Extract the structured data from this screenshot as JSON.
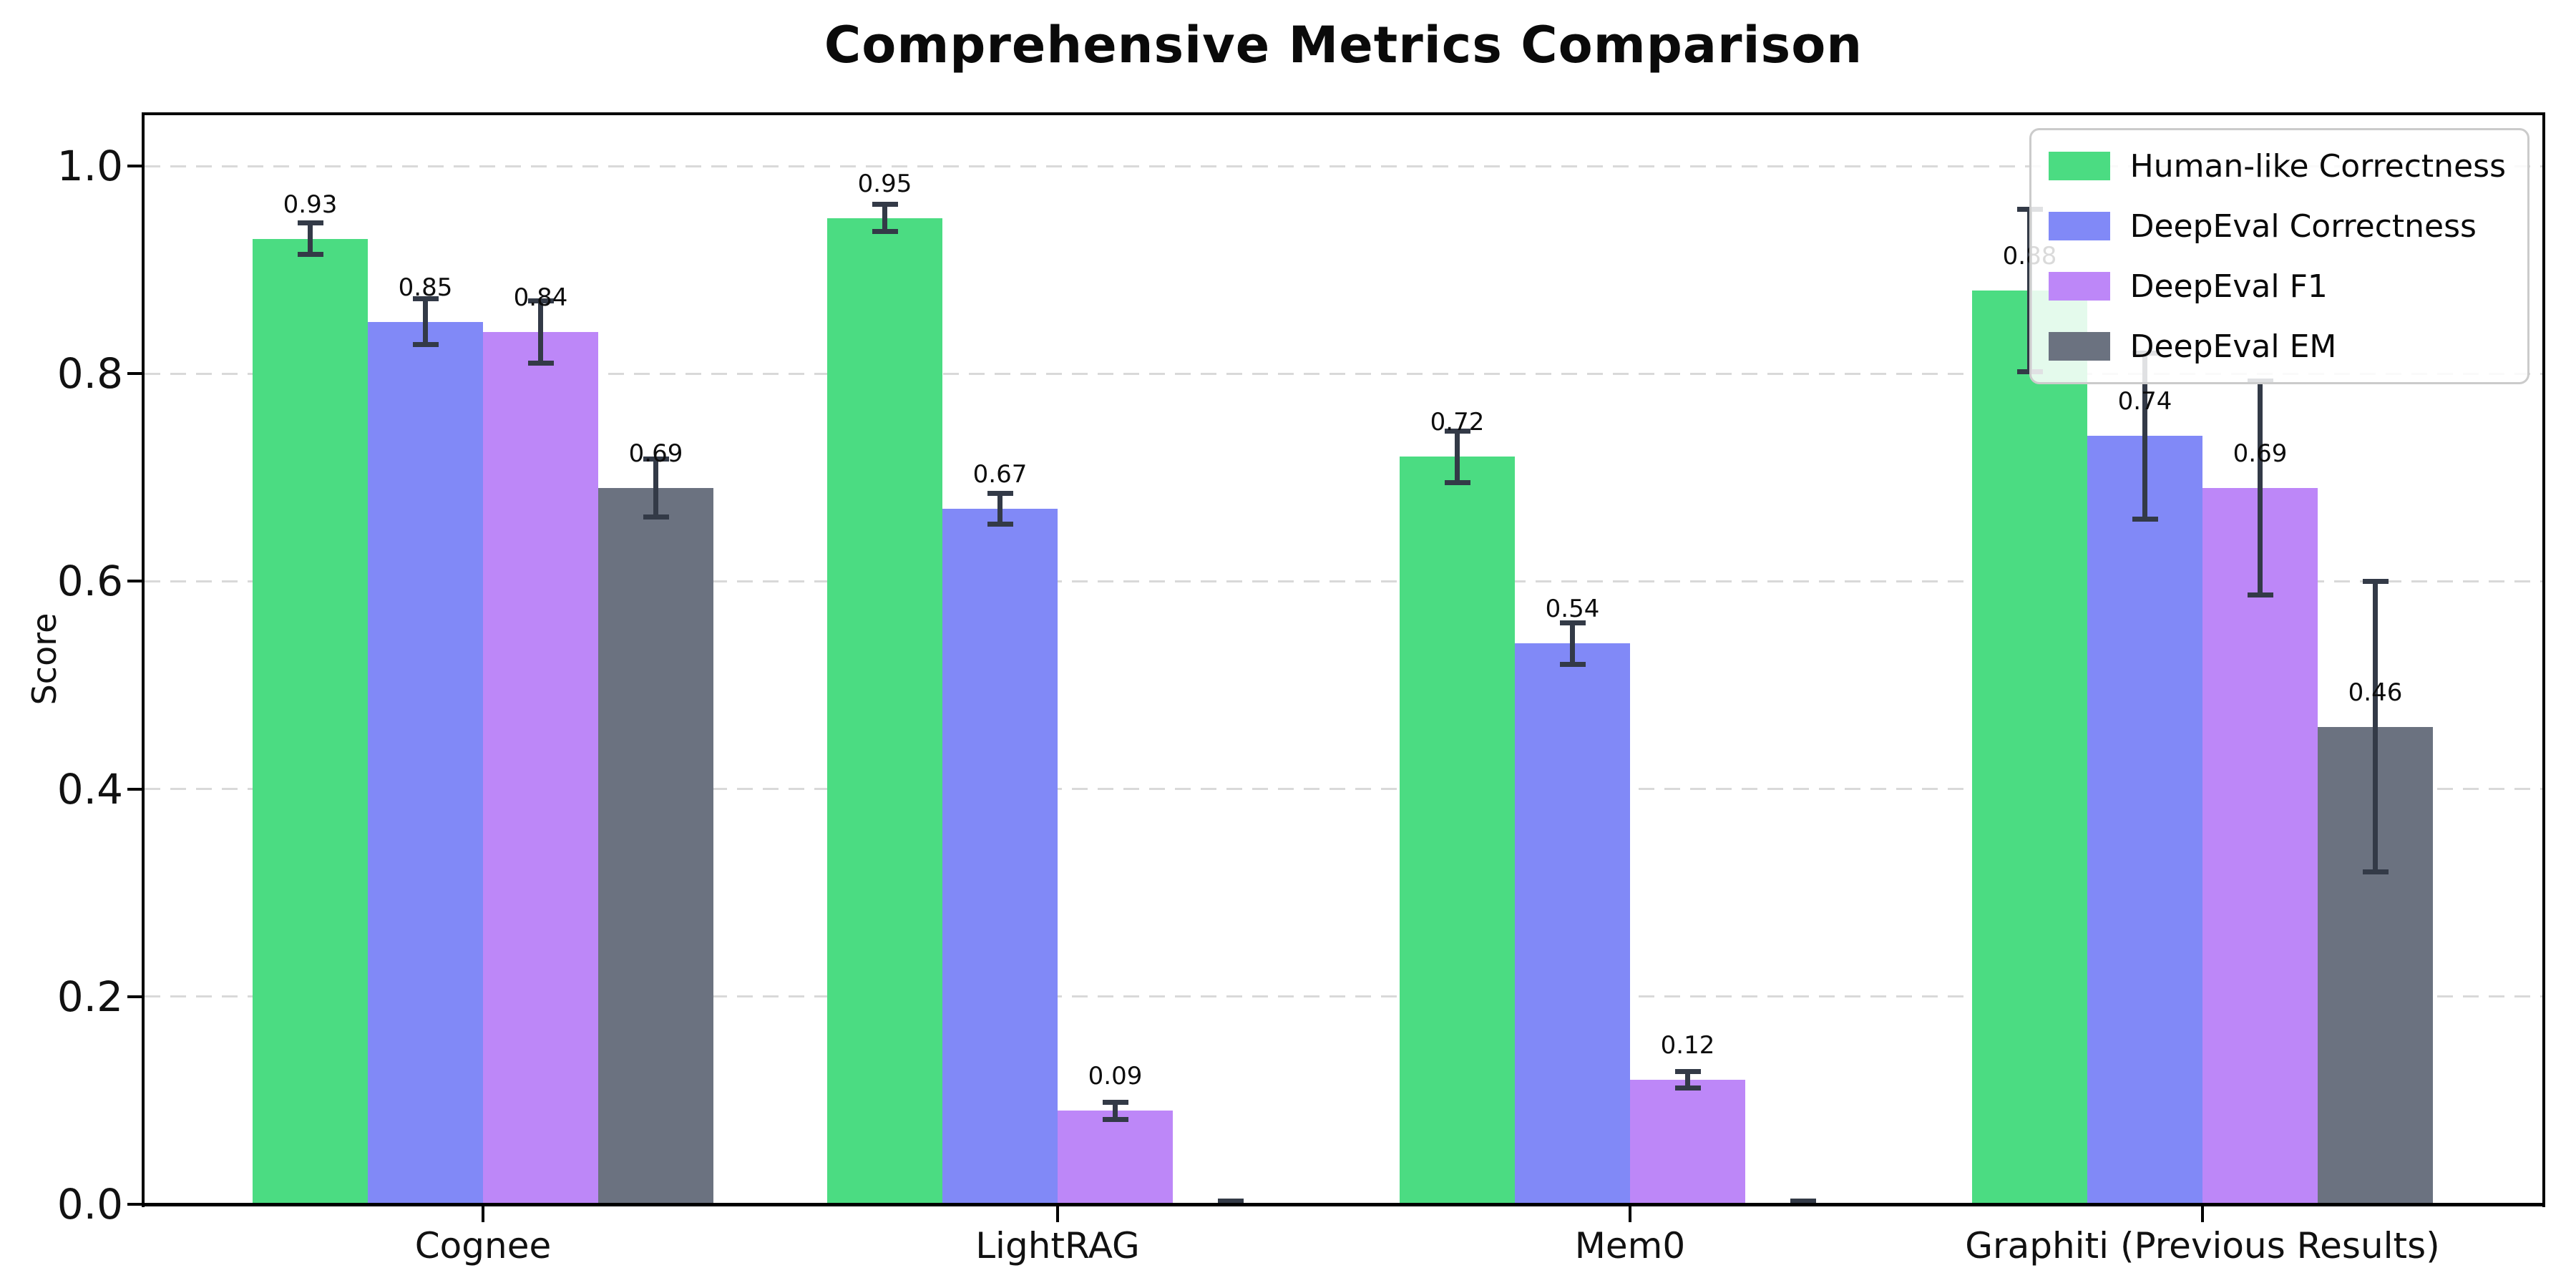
{
  "chart_data": {
    "type": "bar",
    "title": "Comprehensive Metrics Comparison",
    "ylabel": "Score",
    "xlabel": "",
    "categories": [
      "Cognee",
      "LightRAG",
      "Mem0",
      "Graphiti (Previous Results)"
    ],
    "series": [
      {
        "name": "Human-like Correctness",
        "color": "#4bdc82",
        "values": [
          0.93,
          0.95,
          0.72,
          0.88
        ],
        "errors": [
          0.015,
          0.013,
          0.025,
          0.078
        ],
        "bar_labels": [
          "0.93",
          "0.95",
          "0.72",
          "0.88"
        ]
      },
      {
        "name": "DeepEval Correctness",
        "color": "#8189f7",
        "values": [
          0.85,
          0.67,
          0.54,
          0.74
        ],
        "errors": [
          0.022,
          0.015,
          0.02,
          0.08
        ],
        "bar_labels": [
          "0.85",
          "0.67",
          "0.54",
          "0.74"
        ]
      },
      {
        "name": "DeepEval F1",
        "color": "#bd87f8",
        "values": [
          0.84,
          0.09,
          0.12,
          0.69
        ],
        "errors": [
          0.03,
          0.008,
          0.008,
          0.103
        ],
        "bar_labels": [
          "0.84",
          "0.09",
          "0.12",
          "0.69"
        ]
      },
      {
        "name": "DeepEval EM",
        "color": "#6b7280",
        "values": [
          0.69,
          0.0,
          0.0,
          0.46
        ],
        "errors": [
          0.028,
          0.003,
          0.003,
          0.14
        ],
        "bar_labels": [
          "0.69",
          "",
          "",
          "0.46"
        ]
      }
    ],
    "yticks": [
      "0.0",
      "0.2",
      "0.4",
      "0.6",
      "0.8",
      "1.0"
    ],
    "ylim": [
      0,
      1.05
    ],
    "grid": "horizontal-dashed",
    "legend_position": "upper-right",
    "colors": {
      "error_bar": "#333a47",
      "grid": "#d9d9d9",
      "axis": "#000000",
      "background": "#ffffff"
    }
  }
}
